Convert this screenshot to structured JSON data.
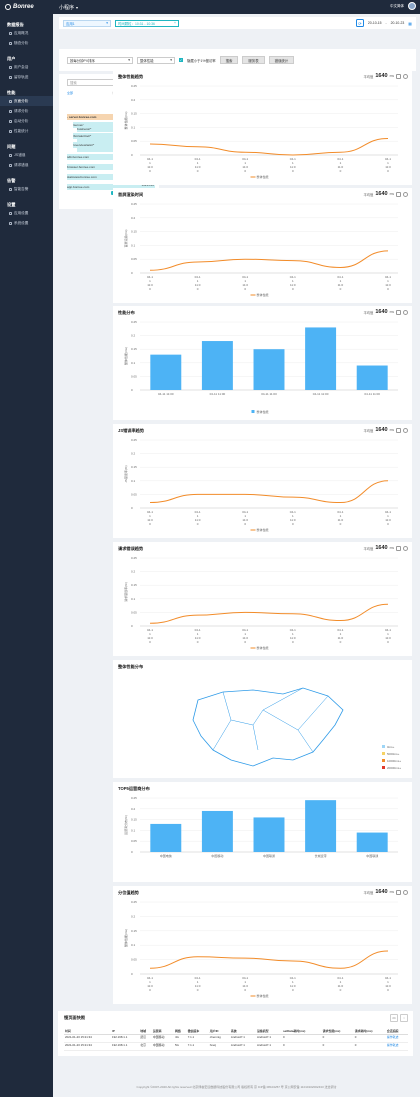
{
  "app": {
    "logo_text": "Bonree",
    "name": "小程序",
    "right_text": "中文简体"
  },
  "sidebar": [
    {
      "group": "数据报告",
      "items": [
        "应用概况",
        "随查分析"
      ]
    },
    {
      "group": "用户",
      "items": [
        "用户会话",
        "留存轨迹"
      ]
    },
    {
      "group": "性能",
      "items": [
        "页面分析",
        "请求分析",
        "启动分析",
        "性能统计"
      ]
    },
    {
      "group": "问题",
      "items": [
        "JS错误",
        "请求错误"
      ]
    },
    {
      "group": "告警",
      "items": [
        "智能告警"
      ]
    },
    {
      "group": "设置",
      "items": [
        "应用设置",
        "系统设置"
      ]
    }
  ],
  "active_item": "页面分析",
  "filter": {
    "app_select": "应用1",
    "time_range": "时间颗粒：10:31 - 10:36",
    "date_start": "20-10-15",
    "date_sep": "-",
    "date_end": "20-10-23"
  },
  "filter2": {
    "dropdown1": "按每分钟PV排序",
    "dropdown2": "整体性能",
    "checkbox_label": "隐藏小于1%慢访率",
    "btn1": "搜索",
    "btn2": "服务表",
    "btn3": "错误统计"
  },
  "tree": {
    "search_placeholder": "搜索",
    "all_label": "全部",
    "header": "整体性能(ms)/每分钟PV/次/分钟",
    "rows": [
      {
        "label": "· server.bonree.com",
        "value": "19215/12",
        "top": 100,
        "indent": 0,
        "width": 88,
        "highlight": true
      },
      {
        "label": "/server/",
        "value": "19215/1",
        "top": 108,
        "indent": 6,
        "width": 44
      },
      {
        "label": "business/*",
        "value": "2",
        "top": 112,
        "indent": 10,
        "width": 40
      },
      {
        "label": "/bm/alertlog/*",
        "value": "19215/1",
        "top": 119,
        "indent": 6,
        "width": 44
      },
      {
        "label": "",
        "value": "2",
        "top": 123,
        "indent": 10,
        "width": 40
      },
      {
        "label": "/overview/app/*",
        "value": "19215/1",
        "top": 128,
        "indent": 6,
        "width": 44
      },
      {
        "label": "",
        "value": "2",
        "top": 132,
        "indent": 10,
        "width": 40
      },
      {
        "label": "sdk.bonree.com",
        "value": "19215/12",
        "top": 140,
        "indent": 0,
        "width": 88
      },
      {
        "label": "browser.bonree.com",
        "value": "19215/12",
        "top": 150,
        "indent": 0,
        "width": 88
      },
      {
        "label": "statsview.bonree.com",
        "value": "19215/12",
        "top": 160,
        "indent": 0,
        "width": 88
      },
      {
        "label": "app.bonree.com",
        "value": "19215/12",
        "top": 170,
        "indent": 0,
        "width": 88
      }
    ]
  },
  "colors": {
    "line": "#f28c2a",
    "bar": "#4db3f5",
    "accent": "#1fb6c1",
    "sidebar": "#1f2a3c"
  },
  "avg_label": "平均值",
  "avg_value": "1640",
  "avg_unit": "ms",
  "legend_label": "整体性能",
  "x_tick_lines": [
    "04-1 1 11:0 0",
    "04-1 1 11:0 0",
    "04-1 1 11:0 0",
    "04-1 1 11:0 0",
    "04-1 1 11:0 0",
    "04-1 1 11:0 0"
  ],
  "chart_data": [
    {
      "type": "line",
      "title": "整体性能趋势",
      "top": 70,
      "height": 115,
      "ylabel": "整体性能(ms)",
      "ylim": [
        0,
        0.25
      ],
      "yticks": [
        "0",
        "0.05",
        "0.1",
        "0.15",
        "0.2",
        "0.25"
      ],
      "categories": [
        "04-11 11:00",
        "04-11 11:00",
        "04-11 11:00",
        "04-11 11:00",
        "04-11 11:00",
        "04-11 11:00"
      ],
      "series": [
        {
          "name": "整体性能",
          "values": [
            0.04,
            0.03,
            0.01,
            0.0,
            0.01,
            0.06
          ]
        }
      ],
      "show_avg": true
    },
    {
      "type": "line",
      "title": "首屏渲染时间",
      "top": 188,
      "height": 115,
      "ylabel": "首屏渲染(ms)",
      "ylim": [
        0,
        0.25
      ],
      "yticks": [
        "0",
        "0.05",
        "0.1",
        "0.15",
        "0.2",
        "0.25"
      ],
      "categories": [
        "04-11 11:00",
        "04-11 11:00",
        "04-11 11:00",
        "04-11 11:00",
        "04-11 11:00",
        "04-11 11:00"
      ],
      "series": [
        {
          "name": "整体性能",
          "values": [
            0.01,
            0.04,
            0.05,
            0.045,
            0.02,
            0.08
          ]
        }
      ],
      "show_avg": true
    },
    {
      "type": "bar",
      "title": "性能分布",
      "top": 306,
      "height": 114,
      "ylabel": "整体性能(ms)",
      "ylim": [
        0,
        0.25
      ],
      "yticks": [
        "0",
        "0.05",
        "0.1",
        "0.15",
        "0.2",
        "0.25"
      ],
      "categories": [
        "04-11 11:00",
        "04-11 11:00",
        "04-11 11:00",
        "04-11 11:00",
        "04-11 11:00"
      ],
      "series": [
        {
          "name": "整体性能",
          "values": [
            0.13,
            0.18,
            0.15,
            0.23,
            0.09
          ]
        }
      ],
      "show_avg": true
    },
    {
      "type": "line",
      "title": "JS错误率趋势",
      "top": 424,
      "height": 114,
      "ylabel": "JS错误率(%)",
      "ylim": [
        0,
        0.25
      ],
      "yticks": [
        "0",
        "0.05",
        "0.1",
        "0.15",
        "0.2",
        "0.25"
      ],
      "categories": [
        "04-11 11:00",
        "04-11 11:00",
        "04-11 11:00",
        "04-11 11:00",
        "04-11 11:00",
        "04-11 11:00"
      ],
      "series": [
        {
          "name": "整体性能",
          "values": [
            0.02,
            0.05,
            0.05,
            0.04,
            0.02,
            0.1
          ]
        }
      ],
      "show_avg": true
    },
    {
      "type": "line",
      "title": "请求错误趋势",
      "top": 542,
      "height": 114,
      "ylabel": "请求错误率(%)",
      "ylim": [
        0,
        0.25
      ],
      "yticks": [
        "0",
        "0.05",
        "0.1",
        "0.15",
        "0.2",
        "0.25"
      ],
      "categories": [
        "04-11 11:00",
        "04-11 11:00",
        "04-11 11:00",
        "04-11 11:00",
        "04-11 11:00",
        "04-11 11:00"
      ],
      "series": [
        {
          "name": "整体性能",
          "values": [
            0.01,
            0.04,
            0.05,
            0.045,
            0.02,
            0.08
          ]
        }
      ],
      "show_avg": true
    },
    {
      "type": "map",
      "title": "整体性能分布",
      "top": 660,
      "height": 118,
      "legend": [
        "0ms+",
        "5000ms+",
        "10000ms+",
        "20000ms+"
      ],
      "legend_colors": [
        "#9ed6f7",
        "#f6d365",
        "#f28c2a",
        "#e0392b"
      ]
    },
    {
      "type": "bar",
      "title": "TOP5运营商分布",
      "top": 782,
      "height": 100,
      "ylabel": "运营商分布(%)",
      "ylim": [
        0,
        0.25
      ],
      "yticks": [
        "0",
        "0.05",
        "0.1",
        "0.15",
        "0.2",
        "0.25"
      ],
      "categories": [
        "中国电信",
        "中国移动",
        "中国联通",
        "长城宽带",
        "中国联通"
      ],
      "series": [
        {
          "name": "",
          "values": [
            0.13,
            0.19,
            0.16,
            0.24,
            0.09
          ]
        }
      ],
      "show_avg": false
    },
    {
      "type": "line",
      "title": "分位值趋势",
      "top": 886,
      "height": 118,
      "ylabel": "整体性能(ms)",
      "ylim": [
        0,
        0.25
      ],
      "yticks": [
        "0",
        "0.05",
        "0.1",
        "0.15",
        "0.2",
        "0.25"
      ],
      "categories": [
        "04-11 11:00",
        "04-11 11:00",
        "04-11 11:00",
        "04-11 11:00",
        "04-11 11:00",
        "04-11 11:00"
      ],
      "series": [
        {
          "name": "整体性能",
          "values": [
            0.02,
            0.06,
            0.055,
            0.045,
            0.02,
            0.08
          ]
        }
      ],
      "show_avg": true
    }
  ],
  "table": {
    "title": "慢页面快照",
    "columns": [
      "时间",
      "IP",
      "地域",
      "运营商",
      "网络",
      "微信版本",
      "用户ID",
      "系统",
      "设备机型",
      "setData耗时(ms)",
      "请求性能(ms)",
      "请求耗时(ms)",
      "会话追踪"
    ],
    "rows": [
      [
        "2021-01-23 15:21:34",
        "192.168.1.1",
        "武汉",
        "中国移动",
        "4G",
        "7.1.1",
        "chenmig",
        "Android7.1",
        "Android7.1",
        "0",
        "0",
        "0",
        "操作轨迹"
      ],
      [
        "2021-01-23 15:21:34",
        "192.168.1.1",
        "北京",
        "中国移动",
        "5G",
        "7.1.1",
        "hneij",
        "Android7.1",
        "Android7.1",
        "0",
        "0",
        "0",
        "操作轨迹"
      ]
    ]
  },
  "footer": "Copyright ©2007-2020 All rights reserved 北京博睿宏远数据科技股份有限公司 版权所有 京 ICP备 08104257 号 京公网安备 11010102002433 法治调讨"
}
